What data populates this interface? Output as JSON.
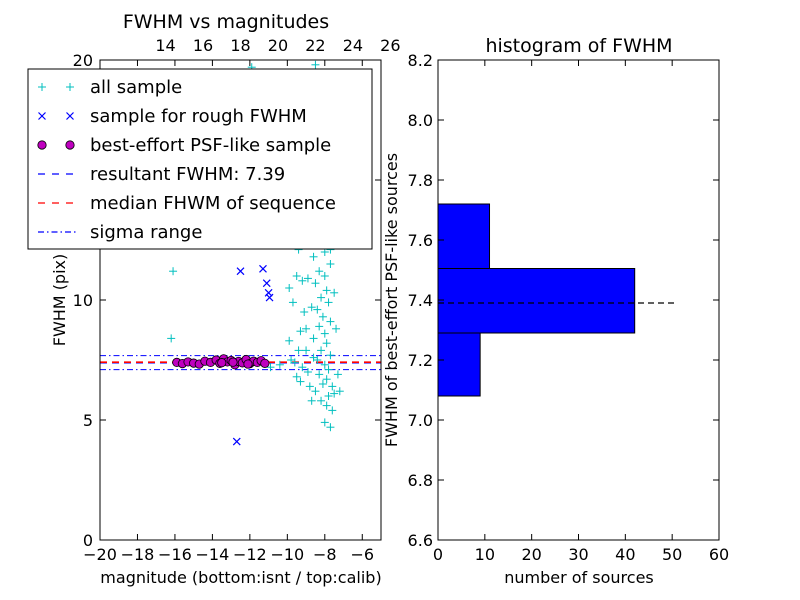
{
  "chart_data": [
    {
      "type": "scatter",
      "title": "FWHM vs magnitudes",
      "xlabel": "magnitude (bottom:isnt / top:calib)",
      "ylabel": "FWHM (pix)",
      "xlim": [
        -20,
        -5
      ],
      "ylim": [
        0,
        20
      ],
      "x_ticks": [
        -20,
        -18,
        -16,
        -14,
        -12,
        -10,
        -8,
        -6
      ],
      "x_tick_labels": [
        "−20",
        "−18",
        "−16",
        "−14",
        "−12",
        "−10",
        "−8",
        "−6"
      ],
      "y_ticks": [
        0,
        5,
        10,
        15,
        20
      ],
      "y_tick_labels": [
        "0",
        "5",
        "10",
        "15",
        "20"
      ],
      "top_axis_ticks": [
        14,
        16,
        18,
        20,
        22,
        24,
        26
      ],
      "top_axis_offset": 30.5,
      "grid": false,
      "legend_position": "top-left",
      "legend": [
        {
          "label": "all sample",
          "marker": "plus",
          "color": "#00BFBF"
        },
        {
          "label": "sample for rough FWHM",
          "marker": "x",
          "color": "#0000FF"
        },
        {
          "label": "best-effort PSF-like sample",
          "marker": "circle",
          "color": "#BF00BF"
        },
        {
          "label": "resultant FWHM: 7.39",
          "line": "dashed",
          "color": "#0000FF"
        },
        {
          "label": "median FHWM of sequence",
          "line": "dashed",
          "color": "#FF0000"
        },
        {
          "label": "sigma range",
          "line": "dashdot",
          "color": "#0000FF"
        }
      ],
      "series": [
        {
          "name": "all sample",
          "marker": "plus",
          "color": "#00BFBF",
          "points": [
            [
              -16.1,
              11.2
            ],
            [
              -16.2,
              8.4
            ],
            [
              -11.9,
              19.7
            ],
            [
              -11.1,
              16.5
            ],
            [
              -10.6,
              15.1
            ],
            [
              -10.2,
              13.7
            ],
            [
              -9.8,
              14.0
            ],
            [
              -9.6,
              12.6
            ],
            [
              -9.4,
              12.1
            ],
            [
              -9.9,
              10.5
            ],
            [
              -9.5,
              11.0
            ],
            [
              -9.2,
              10.8
            ],
            [
              -9.7,
              9.9
            ],
            [
              -9.1,
              9.5
            ],
            [
              -9.3,
              8.7
            ],
            [
              -9.9,
              8.3
            ],
            [
              -9.4,
              7.9
            ],
            [
              -9.8,
              7.5
            ],
            [
              -9.0,
              7.9
            ],
            [
              -9.6,
              7.4
            ],
            [
              -9.2,
              7.2
            ],
            [
              -9.5,
              6.8
            ],
            [
              -10.4,
              7.3
            ],
            [
              -10.9,
              7.2
            ],
            [
              -8.9,
              7.0
            ],
            [
              -9.3,
              6.6
            ],
            [
              -8.5,
              19.8
            ],
            [
              -8.3,
              14.5
            ],
            [
              -8.1,
              13.9
            ],
            [
              -7.9,
              13.5
            ],
            [
              -8.4,
              13.1
            ],
            [
              -7.8,
              12.6
            ],
            [
              -8.2,
              12.4
            ],
            [
              -8.0,
              12.0
            ],
            [
              -8.6,
              11.8
            ],
            [
              -7.7,
              11.5
            ],
            [
              -8.3,
              11.2
            ],
            [
              -8.0,
              11.0
            ],
            [
              -8.5,
              10.7
            ],
            [
              -7.9,
              10.4
            ],
            [
              -8.2,
              10.1
            ],
            [
              -7.8,
              9.9
            ],
            [
              -8.4,
              9.6
            ],
            [
              -8.1,
              9.3
            ],
            [
              -7.7,
              9.1
            ],
            [
              -8.3,
              8.9
            ],
            [
              -8.0,
              8.6
            ],
            [
              -8.6,
              8.4
            ],
            [
              -7.9,
              8.2
            ],
            [
              -8.2,
              7.9
            ],
            [
              -7.7,
              7.7
            ],
            [
              -8.4,
              7.5
            ],
            [
              -8.0,
              7.3
            ],
            [
              -7.8,
              7.1
            ],
            [
              -8.3,
              6.9
            ],
            [
              -7.9,
              6.7
            ],
            [
              -8.1,
              6.5
            ],
            [
              -7.6,
              6.4
            ],
            [
              -8.5,
              6.2
            ],
            [
              -7.8,
              6.0
            ],
            [
              -8.2,
              5.8
            ],
            [
              -7.9,
              5.6
            ],
            [
              -8.7,
              5.8
            ],
            [
              -7.5,
              6.1
            ],
            [
              -8.0,
              4.9
            ],
            [
              -7.7,
              4.7
            ],
            [
              -7.6,
              5.4
            ],
            [
              -8.8,
              12.9
            ],
            [
              -8.9,
              10.9
            ],
            [
              -8.7,
              9.7
            ],
            [
              -7.4,
              8.8
            ],
            [
              -7.5,
              10.3
            ],
            [
              -7.3,
              6.9
            ],
            [
              -8.6,
              7.6
            ],
            [
              -9.0,
              8.8
            ],
            [
              -8.8,
              6.4
            ],
            [
              -7.2,
              6.2
            ],
            [
              -8.1,
              13.2
            ],
            [
              -7.7,
              12.1
            ]
          ]
        },
        {
          "name": "sample for rough FWHM",
          "marker": "x",
          "color": "#0000FF",
          "points": [
            [
              -12.5,
              11.2
            ],
            [
              -11.3,
              11.3
            ],
            [
              -11.1,
              10.7
            ],
            [
              -11.0,
              10.3
            ],
            [
              -10.95,
              10.1
            ],
            [
              -12.7,
              4.1
            ]
          ]
        },
        {
          "name": "best-effort PSF-like sample",
          "marker": "circle",
          "color": "#BF00BF",
          "points": [
            [
              -15.9,
              7.4
            ],
            [
              -15.6,
              7.35
            ],
            [
              -15.3,
              7.42
            ],
            [
              -15.0,
              7.37
            ],
            [
              -14.7,
              7.33
            ],
            [
              -14.4,
              7.45
            ],
            [
              -14.1,
              7.4
            ],
            [
              -13.8,
              7.5
            ],
            [
              -13.6,
              7.36
            ],
            [
              -13.4,
              7.55
            ],
            [
              -13.2,
              7.42
            ],
            [
              -13.0,
              7.48
            ],
            [
              -12.8,
              7.3
            ],
            [
              -12.6,
              7.44
            ],
            [
              -12.4,
              7.38
            ],
            [
              -12.2,
              7.52
            ],
            [
              -12.0,
              7.35
            ],
            [
              -11.8,
              7.45
            ],
            [
              -11.6,
              7.4
            ],
            [
              -11.4,
              7.47
            ],
            [
              -11.2,
              7.36
            ],
            [
              -13.5,
              7.39
            ],
            [
              -12.9,
              7.41
            ],
            [
              -12.1,
              7.33
            ]
          ]
        }
      ],
      "hlines": [
        {
          "name": "resultant FWHM: 7.39",
          "y": 7.39,
          "style": "dashed",
          "color": "#0000FF"
        },
        {
          "name": "median FHWM of sequence",
          "y": 7.41,
          "style": "dashed",
          "color": "#FF0000"
        },
        {
          "name": "sigma range",
          "y": 7.1,
          "style": "dashdot",
          "color": "#0000FF"
        },
        {
          "name": "sigma range",
          "y": 7.68,
          "style": "dashdot",
          "color": "#0000FF"
        }
      ]
    },
    {
      "type": "bar",
      "orientation": "horizontal",
      "title": "histogram of FWHM",
      "xlabel": "number of sources",
      "ylabel": "FWHM of best-effort PSF-like sources",
      "xlim": [
        0,
        60
      ],
      "ylim": [
        6.6,
        8.2
      ],
      "x_ticks": [
        0,
        10,
        20,
        30,
        40,
        50,
        60
      ],
      "y_ticks": [
        6.6,
        6.8,
        7.0,
        7.2,
        7.4,
        7.6,
        7.8,
        8.0,
        8.2
      ],
      "y_tick_labels": [
        "6.6",
        "6.8",
        "7.0",
        "7.2",
        "7.4",
        "7.6",
        "7.8",
        "8.0",
        "8.2"
      ],
      "bar_color": "#0000FF",
      "bins": [
        {
          "from": 7.08,
          "to": 7.29,
          "count": 9
        },
        {
          "from": 7.29,
          "to": 7.505,
          "count": 42
        },
        {
          "from": 7.505,
          "to": 7.72,
          "count": 11
        }
      ],
      "reference_line": {
        "y": 7.39,
        "style": "dashed",
        "color": "#000000",
        "x_end": 51
      }
    }
  ]
}
